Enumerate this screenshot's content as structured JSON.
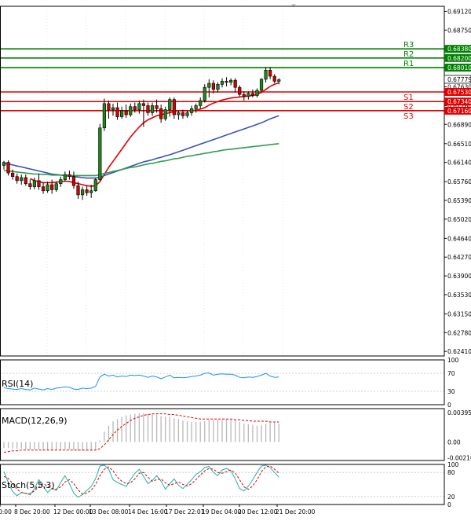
{
  "chart_data": {
    "type": "candlestick",
    "price_axis": {
      "range": [
        0.6232,
        0.6922
      ],
      "ticks": [
        "0.69120",
        "0.68750",
        "0.68380",
        "0.68010",
        "0.67630",
        "0.67260",
        "0.66890",
        "0.66510",
        "0.66140",
        "0.65760",
        "0.65390",
        "0.65020",
        "0.64640",
        "0.64270",
        "0.63900",
        "0.63530",
        "0.63150",
        "0.62780",
        "0.62410"
      ]
    },
    "time_labels": [
      "0:00",
      "8 Dec 20:00",
      "12 Dec 00:00",
      "13 Dec 08:00",
      "14 Dec 16:00",
      "17 Dec 22:01",
      "19 Dec 04:00",
      "20 Dec 12:00",
      "21 Dec 20:00"
    ],
    "levels": [
      {
        "label": "R3",
        "value": 0.6838,
        "price_label": "0.68380",
        "color": "#008000"
      },
      {
        "label": "R2",
        "value": 0.682,
        "price_label": "0.68200",
        "color": "#008000"
      },
      {
        "label": "R1",
        "value": 0.6801,
        "price_label": "0.68010",
        "color": "#008000"
      },
      {
        "label": "S1",
        "value": 0.6753,
        "price_label": "0.67530",
        "color": "#e00000"
      },
      {
        "label": "S2",
        "value": 0.6734,
        "price_label": "0.67340",
        "color": "#e00000"
      },
      {
        "label": "S3",
        "value": 0.6716,
        "price_label": "0.67160",
        "color": "#e00000"
      }
    ],
    "current_price": {
      "value": 0.67779,
      "label": "0.67779"
    },
    "candles": [
      {
        "o": 0.6608,
        "h": 0.6617,
        "l": 0.66,
        "c": 0.6614
      },
      {
        "o": 0.6614,
        "h": 0.6618,
        "l": 0.6588,
        "c": 0.6593
      },
      {
        "o": 0.6593,
        "h": 0.66,
        "l": 0.658,
        "c": 0.6586
      },
      {
        "o": 0.6586,
        "h": 0.6592,
        "l": 0.6572,
        "c": 0.6578
      },
      {
        "o": 0.6578,
        "h": 0.659,
        "l": 0.657,
        "c": 0.6584
      },
      {
        "o": 0.6584,
        "h": 0.659,
        "l": 0.6568,
        "c": 0.6572
      },
      {
        "o": 0.6572,
        "h": 0.658,
        "l": 0.656,
        "c": 0.6566
      },
      {
        "o": 0.6566,
        "h": 0.6584,
        "l": 0.6561,
        "c": 0.6578
      },
      {
        "o": 0.6578,
        "h": 0.6592,
        "l": 0.656,
        "c": 0.6566
      },
      {
        "o": 0.6566,
        "h": 0.6574,
        "l": 0.6552,
        "c": 0.6558
      },
      {
        "o": 0.6558,
        "h": 0.6576,
        "l": 0.6554,
        "c": 0.657
      },
      {
        "o": 0.657,
        "h": 0.658,
        "l": 0.6552,
        "c": 0.656
      },
      {
        "o": 0.656,
        "h": 0.6576,
        "l": 0.6556,
        "c": 0.6572
      },
      {
        "o": 0.6572,
        "h": 0.6586,
        "l": 0.6566,
        "c": 0.658
      },
      {
        "o": 0.658,
        "h": 0.6596,
        "l": 0.6576,
        "c": 0.659
      },
      {
        "o": 0.659,
        "h": 0.6598,
        "l": 0.658,
        "c": 0.6586
      },
      {
        "o": 0.6586,
        "h": 0.6596,
        "l": 0.6562,
        "c": 0.6568
      },
      {
        "o": 0.6568,
        "h": 0.6576,
        "l": 0.6542,
        "c": 0.655
      },
      {
        "o": 0.655,
        "h": 0.6566,
        "l": 0.654,
        "c": 0.656
      },
      {
        "o": 0.656,
        "h": 0.6568,
        "l": 0.6548,
        "c": 0.6554
      },
      {
        "o": 0.6554,
        "h": 0.657,
        "l": 0.6544,
        "c": 0.6558
      },
      {
        "o": 0.6558,
        "h": 0.6584,
        "l": 0.6556,
        "c": 0.658
      },
      {
        "o": 0.658,
        "h": 0.669,
        "l": 0.6578,
        "c": 0.6682
      },
      {
        "o": 0.6682,
        "h": 0.674,
        "l": 0.6676,
        "c": 0.673
      },
      {
        "o": 0.673,
        "h": 0.6736,
        "l": 0.67,
        "c": 0.6718
      },
      {
        "o": 0.6718,
        "h": 0.673,
        "l": 0.6706,
        "c": 0.6722
      },
      {
        "o": 0.6722,
        "h": 0.6732,
        "l": 0.6698,
        "c": 0.6704
      },
      {
        "o": 0.6704,
        "h": 0.6724,
        "l": 0.67,
        "c": 0.6716
      },
      {
        "o": 0.6716,
        "h": 0.6728,
        "l": 0.6702,
        "c": 0.6708
      },
      {
        "o": 0.6708,
        "h": 0.673,
        "l": 0.6704,
        "c": 0.6724
      },
      {
        "o": 0.6724,
        "h": 0.6732,
        "l": 0.6712,
        "c": 0.6718
      },
      {
        "o": 0.6718,
        "h": 0.6736,
        "l": 0.671,
        "c": 0.673
      },
      {
        "o": 0.673,
        "h": 0.6738,
        "l": 0.6684,
        "c": 0.6726
      },
      {
        "o": 0.6726,
        "h": 0.6732,
        "l": 0.6706,
        "c": 0.6712
      },
      {
        "o": 0.6712,
        "h": 0.6732,
        "l": 0.6706,
        "c": 0.6726
      },
      {
        "o": 0.6726,
        "h": 0.6738,
        "l": 0.6712,
        "c": 0.672
      },
      {
        "o": 0.672,
        "h": 0.6728,
        "l": 0.6692,
        "c": 0.67
      },
      {
        "o": 0.67,
        "h": 0.6724,
        "l": 0.6696,
        "c": 0.6718
      },
      {
        "o": 0.6718,
        "h": 0.6742,
        "l": 0.6704,
        "c": 0.6738
      },
      {
        "o": 0.6738,
        "h": 0.6742,
        "l": 0.67,
        "c": 0.6708
      },
      {
        "o": 0.6708,
        "h": 0.6716,
        "l": 0.6698,
        "c": 0.6712
      },
      {
        "o": 0.6712,
        "h": 0.6718,
        "l": 0.67,
        "c": 0.6706
      },
      {
        "o": 0.6706,
        "h": 0.6716,
        "l": 0.6702,
        "c": 0.6712
      },
      {
        "o": 0.6712,
        "h": 0.6726,
        "l": 0.6706,
        "c": 0.672
      },
      {
        "o": 0.672,
        "h": 0.673,
        "l": 0.6712,
        "c": 0.6726
      },
      {
        "o": 0.6726,
        "h": 0.6742,
        "l": 0.672,
        "c": 0.6736
      },
      {
        "o": 0.6736,
        "h": 0.6768,
        "l": 0.6732,
        "c": 0.6762
      },
      {
        "o": 0.6762,
        "h": 0.6778,
        "l": 0.6742,
        "c": 0.677
      },
      {
        "o": 0.677,
        "h": 0.6776,
        "l": 0.675,
        "c": 0.6758
      },
      {
        "o": 0.6758,
        "h": 0.6772,
        "l": 0.6752,
        "c": 0.6768
      },
      {
        "o": 0.6768,
        "h": 0.678,
        "l": 0.6762,
        "c": 0.6774
      },
      {
        "o": 0.6774,
        "h": 0.6782,
        "l": 0.6764,
        "c": 0.6772
      },
      {
        "o": 0.6772,
        "h": 0.678,
        "l": 0.6766,
        "c": 0.6776
      },
      {
        "o": 0.6776,
        "h": 0.678,
        "l": 0.6752,
        "c": 0.6762
      },
      {
        "o": 0.6762,
        "h": 0.6766,
        "l": 0.6744,
        "c": 0.6748
      },
      {
        "o": 0.6748,
        "h": 0.6754,
        "l": 0.6736,
        "c": 0.6744
      },
      {
        "o": 0.6744,
        "h": 0.6754,
        "l": 0.6738,
        "c": 0.675
      },
      {
        "o": 0.675,
        "h": 0.6758,
        "l": 0.6742,
        "c": 0.6746
      },
      {
        "o": 0.6746,
        "h": 0.676,
        "l": 0.6742,
        "c": 0.6756
      },
      {
        "o": 0.6756,
        "h": 0.678,
        "l": 0.6752,
        "c": 0.6778
      },
      {
        "o": 0.6778,
        "h": 0.6802,
        "l": 0.6772,
        "c": 0.6796
      },
      {
        "o": 0.6796,
        "h": 0.6802,
        "l": 0.6778,
        "c": 0.6784
      },
      {
        "o": 0.6784,
        "h": 0.6788,
        "l": 0.677,
        "c": 0.6774
      },
      {
        "o": 0.6774,
        "h": 0.678,
        "l": 0.6768,
        "c": 0.6777
      }
    ],
    "moving_averages": [
      {
        "color": "#e00000",
        "values": [
          null,
          null,
          null,
          null,
          null,
          null,
          0.6582,
          0.6578,
          0.6576,
          0.6574,
          0.6574,
          0.6574,
          0.6575,
          0.6576,
          0.6577,
          0.6576,
          0.6574,
          0.6572,
          0.657,
          0.6568,
          0.6567,
          0.6568,
          0.6576,
          0.659,
          0.6604,
          0.6616,
          0.6628,
          0.664,
          0.6652,
          0.6664,
          0.6674,
          0.6684,
          0.6692,
          0.6698,
          0.6702,
          0.6706,
          0.6708,
          0.671,
          0.6712,
          0.6714,
          0.6716,
          0.6716,
          0.6716,
          0.6716,
          0.6717,
          0.6719,
          0.6722,
          0.6727,
          0.6731,
          0.6734,
          0.6737,
          0.6739,
          0.6741,
          0.6742,
          0.6743,
          0.6744,
          0.6745,
          0.6746,
          0.6748,
          0.6752,
          0.6758,
          0.6764,
          0.6768,
          0.6771
        ]
      },
      {
        "color": "#3f51b5",
        "values": [
          0.6612,
          0.6611,
          0.6609,
          0.6607,
          0.6605,
          0.6603,
          0.6601,
          0.6599,
          0.6597,
          0.6595,
          0.6593,
          0.6591,
          0.659,
          0.6589,
          0.6588,
          0.6587,
          0.6586,
          0.6585,
          0.6584,
          0.6583,
          0.6583,
          0.6583,
          0.6585,
          0.6588,
          0.6591,
          0.6594,
          0.6597,
          0.66,
          0.6603,
          0.6606,
          0.6609,
          0.6612,
          0.6615,
          0.6617,
          0.6619,
          0.6622,
          0.6624,
          0.6627,
          0.6629,
          0.6632,
          0.6635,
          0.6638,
          0.6641,
          0.6644,
          0.6647,
          0.665,
          0.6653,
          0.6656,
          0.6659,
          0.6662,
          0.6665,
          0.6668,
          0.6671,
          0.6674,
          0.6677,
          0.668,
          0.6683,
          0.6686,
          0.6689,
          0.6692,
          0.6696,
          0.67,
          0.6703,
          0.6706
        ]
      },
      {
        "color": "#2e9e4f",
        "values": [
          0.6598,
          0.6597,
          0.6596,
          0.6595,
          0.6594,
          0.6593,
          0.6592,
          0.6591,
          0.6591,
          0.659,
          0.659,
          0.6589,
          0.6589,
          0.6589,
          0.6588,
          0.6588,
          0.6588,
          0.6588,
          0.6588,
          0.6588,
          0.6588,
          0.6588,
          0.659,
          0.6592,
          0.6594,
          0.6596,
          0.6598,
          0.66,
          0.6602,
          0.6604,
          0.6605,
          0.6607,
          0.6609,
          0.6611,
          0.6612,
          0.6614,
          0.6616,
          0.6617,
          0.6619,
          0.6621,
          0.6622,
          0.6624,
          0.6626,
          0.6627,
          0.6629,
          0.663,
          0.6632,
          0.6633,
          0.6635,
          0.6636,
          0.6638,
          0.6639,
          0.664,
          0.6641,
          0.6642,
          0.6643,
          0.6644,
          0.6645,
          0.6646,
          0.6647,
          0.6648,
          0.6649,
          0.665,
          0.6651
        ]
      }
    ],
    "rsi": {
      "label": "RSI(14)",
      "ticks": [
        "100",
        "70",
        "30",
        "0"
      ],
      "values": [
        38,
        36,
        35,
        34,
        36,
        34,
        33,
        37,
        35,
        33,
        36,
        34,
        37,
        38,
        40,
        39,
        35,
        34,
        37,
        36,
        37,
        41,
        62,
        68,
        64,
        66,
        62,
        64,
        63,
        66,
        65,
        66,
        64,
        61,
        64,
        62,
        58,
        62,
        66,
        60,
        61,
        60,
        61,
        63,
        64,
        66,
        70,
        71,
        66,
        68,
        69,
        68,
        68,
        66,
        61,
        60,
        62,
        61,
        63,
        66,
        70,
        64,
        61,
        62
      ]
    },
    "macd": {
      "label": "MACD(12,26,9)",
      "ticks": [
        "0.003958",
        "0.00",
        "-0.002104"
      ],
      "range": [
        -0.0025,
        0.0045
      ],
      "histogram": [
        -0.0008,
        -0.0008,
        -0.0009,
        -0.0009,
        -0.0009,
        -0.001,
        -0.001,
        -0.001,
        -0.001,
        -0.0011,
        -0.0011,
        -0.0011,
        -0.0011,
        -0.0011,
        -0.001,
        -0.001,
        -0.0011,
        -0.0012,
        -0.0012,
        -0.0012,
        -0.0012,
        -0.0011,
        0.0002,
        0.0014,
        0.0022,
        0.0028,
        0.0031,
        0.0034,
        0.0036,
        0.0037,
        0.0038,
        0.0039,
        0.0039,
        0.0038,
        0.0038,
        0.0037,
        0.0035,
        0.0034,
        0.0034,
        0.0032,
        0.0031,
        0.0029,
        0.0028,
        0.0027,
        0.0027,
        0.0027,
        0.0028,
        0.003,
        0.003,
        0.003,
        0.003,
        0.003,
        0.003,
        0.0029,
        0.0027,
        0.0025,
        0.0024,
        0.0023,
        0.0022,
        0.0023,
        0.0025,
        0.0026,
        0.0026,
        0.0025
      ],
      "signal": [
        -0.0014,
        -0.0013,
        -0.0012,
        -0.0012,
        -0.0011,
        -0.0011,
        -0.0011,
        -0.0011,
        -0.0011,
        -0.0011,
        -0.0011,
        -0.0011,
        -0.0011,
        -0.0011,
        -0.0011,
        -0.0011,
        -0.0011,
        -0.0011,
        -0.0011,
        -0.0011,
        -0.0011,
        -0.0011,
        -0.0009,
        -0.0004,
        0.0003,
        0.001,
        0.0016,
        0.0021,
        0.0025,
        0.0029,
        0.0032,
        0.0034,
        0.0036,
        0.0037,
        0.0038,
        0.0038,
        0.0038,
        0.0038,
        0.0037,
        0.0037,
        0.0036,
        0.0035,
        0.0034,
        0.0033,
        0.0032,
        0.0031,
        0.0031,
        0.0031,
        0.0031,
        0.0031,
        0.0031,
        0.0031,
        0.0031,
        0.003,
        0.003,
        0.0029,
        0.0029,
        0.0028,
        0.0028,
        0.0028,
        0.0028,
        0.0027,
        0.0027,
        0.0027
      ]
    },
    "stoch": {
      "label": "Stoch(5,5,3)",
      "ticks": [
        "100",
        "80",
        "20",
        "0"
      ],
      "k": [
        82,
        55,
        32,
        22,
        30,
        28,
        24,
        40,
        62,
        45,
        30,
        40,
        35,
        55,
        72,
        52,
        28,
        18,
        25,
        35,
        45,
        65,
        96,
        98,
        88,
        62,
        55,
        50,
        45,
        62,
        78,
        88,
        70,
        52,
        60,
        72,
        58,
        38,
        52,
        64,
        48,
        40,
        50,
        62,
        75,
        82,
        92,
        95,
        80,
        72,
        86,
        90,
        84,
        64,
        40,
        34,
        46,
        62,
        80,
        96,
        98,
        92,
        80,
        68
      ],
      "d": [
        70,
        65,
        52,
        38,
        30,
        28,
        27,
        34,
        44,
        52,
        46,
        40,
        38,
        44,
        56,
        62,
        52,
        36,
        26,
        28,
        36,
        50,
        72,
        88,
        94,
        84,
        68,
        58,
        52,
        54,
        64,
        78,
        80,
        68,
        58,
        62,
        64,
        54,
        48,
        52,
        56,
        50,
        46,
        52,
        62,
        74,
        84,
        90,
        88,
        80,
        78,
        82,
        86,
        78,
        62,
        44,
        38,
        46,
        62,
        82,
        94,
        96,
        88,
        78
      ]
    }
  }
}
